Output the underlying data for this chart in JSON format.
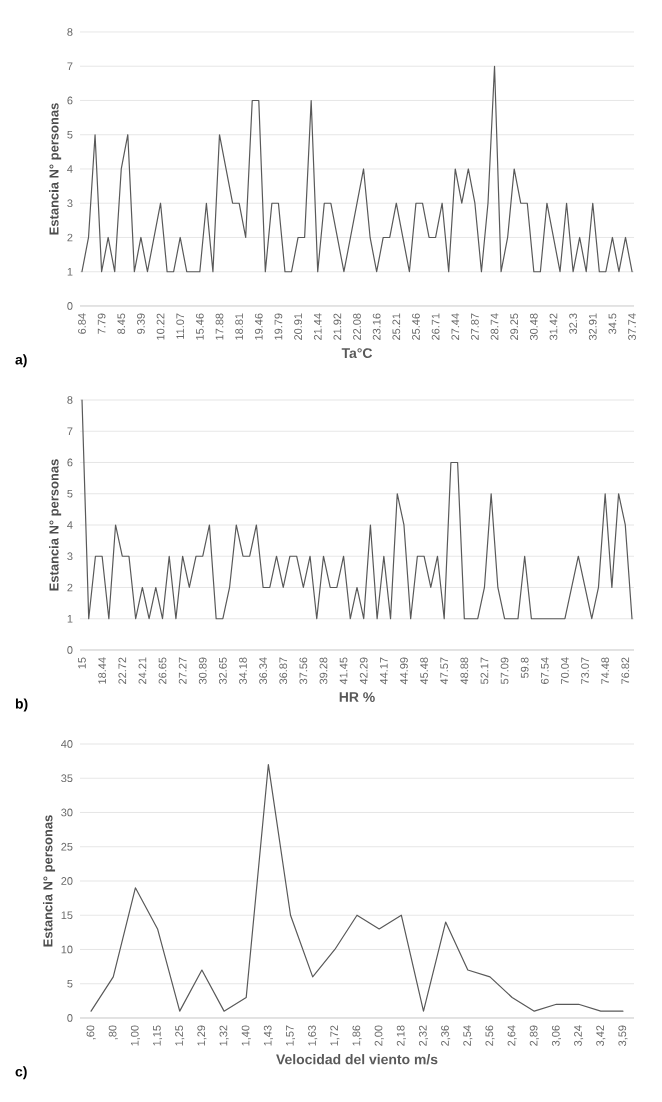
{
  "chart_data": [
    {
      "type": "line",
      "xlabel": "Ta°C",
      "ylabel": "Estancia N° personas",
      "annotations": [
        "a)"
      ],
      "categories": [
        "6.84",
        null,
        null,
        "7.79",
        null,
        null,
        "8.45",
        null,
        null,
        "9.39",
        null,
        null,
        "10.22",
        null,
        null,
        "11.07",
        null,
        null,
        "15.46",
        null,
        null,
        "17.88",
        null,
        null,
        "18.81",
        null,
        null,
        "19.46",
        null,
        null,
        "19.79",
        null,
        null,
        "20.91",
        null,
        null,
        "21.44",
        null,
        null,
        "21.92",
        null,
        null,
        "22.08",
        null,
        null,
        "23.16",
        null,
        null,
        "25.21",
        null,
        null,
        "25.46",
        null,
        null,
        "26.71",
        null,
        null,
        "27.44",
        null,
        null,
        "27.87",
        null,
        null,
        "28.74",
        null,
        null,
        "29.25",
        null,
        null,
        "30.48",
        null,
        null,
        "31.42",
        null,
        null,
        "32.3",
        null,
        null,
        "32.91",
        null,
        null,
        "34.5",
        null,
        null,
        "37.74"
      ],
      "series": [
        {
          "color": "#595959",
          "values": [
            1,
            2,
            5,
            1,
            2,
            1,
            4,
            5,
            1,
            2,
            1,
            2,
            3,
            1,
            1,
            2,
            1,
            1,
            1,
            3,
            1,
            5,
            4,
            3,
            3,
            2,
            6,
            6,
            1,
            3,
            3,
            1,
            1,
            2,
            2,
            6,
            1,
            3,
            3,
            2,
            1,
            2,
            3,
            4,
            2,
            1,
            2,
            2,
            3,
            2,
            1,
            3,
            3,
            2,
            2,
            3,
            1,
            4,
            3,
            4,
            3,
            1,
            3,
            7,
            1,
            2,
            4,
            3,
            3,
            1,
            1,
            3,
            2,
            1,
            3,
            1,
            2,
            1,
            3,
            1,
            1,
            2,
            1,
            2,
            1
          ]
        }
      ],
      "ylim": [
        0,
        8
      ],
      "yticks": [
        0,
        1,
        2,
        3,
        4,
        5,
        6,
        7,
        8
      ],
      "grid": "y"
    },
    {
      "type": "line",
      "xlabel": "HR %",
      "ylabel": "Estancia N° personas",
      "annotations": [
        "b)"
      ],
      "categories": [
        "15",
        null,
        null,
        "18.44",
        null,
        null,
        "22.72",
        null,
        null,
        "24.21",
        null,
        null,
        "26.65",
        null,
        null,
        "27.27",
        null,
        null,
        "30.89",
        null,
        null,
        "32.65",
        null,
        null,
        "34.18",
        null,
        null,
        "36.34",
        null,
        null,
        "36.87",
        null,
        null,
        "37.56",
        null,
        null,
        "39.28",
        null,
        null,
        "41.45",
        null,
        null,
        "42.29",
        null,
        null,
        "44.17",
        null,
        null,
        "44.99",
        null,
        null,
        "45.48",
        null,
        null,
        "47.57",
        null,
        null,
        "48.88",
        null,
        null,
        "52.17",
        null,
        null,
        "57.09",
        null,
        null,
        "59.8",
        null,
        null,
        "67.54",
        null,
        null,
        "70.04",
        null,
        null,
        "73.07",
        null,
        null,
        "74.48",
        null,
        null,
        "76.82",
        null
      ],
      "series": [
        {
          "color": "#595959",
          "values": [
            8,
            1,
            3,
            3,
            1,
            4,
            3,
            3,
            1,
            2,
            1,
            2,
            1,
            3,
            1,
            3,
            2,
            3,
            3,
            4,
            1,
            1,
            2,
            4,
            3,
            3,
            4,
            2,
            2,
            3,
            2,
            3,
            3,
            2,
            3,
            1,
            3,
            2,
            2,
            3,
            1,
            2,
            1,
            4,
            1,
            3,
            1,
            5,
            4,
            1,
            3,
            3,
            2,
            3,
            1,
            6,
            6,
            1,
            1,
            1,
            2,
            5,
            2,
            1,
            1,
            1,
            3,
            1,
            1,
            1,
            1,
            1,
            1,
            2,
            3,
            2,
            1,
            2,
            5,
            2,
            5,
            4,
            1
          ]
        }
      ],
      "ylim": [
        0,
        8
      ],
      "yticks": [
        0,
        1,
        2,
        3,
        4,
        5,
        6,
        7,
        8
      ],
      "grid": "y"
    },
    {
      "type": "line",
      "xlabel": "Velocidad del viento m/s",
      "ylabel": "Estancia N° personas",
      "annotations": [
        "c)"
      ],
      "categories": [
        ",60",
        ",80",
        "1,00",
        "1,15",
        "1,25",
        "1,29",
        "1,32",
        "1,40",
        "1,43",
        "1,57",
        "1,63",
        "1,72",
        "1,86",
        "2,00",
        "2,18",
        "2,32",
        "2,36",
        "2,54",
        "2,56",
        "2,64",
        "2,89",
        "3,06",
        "3,24",
        "3,42",
        "3,59"
      ],
      "series": [
        {
          "color": "#595959",
          "values": [
            1,
            6,
            19,
            13,
            1,
            7,
            1,
            3,
            37,
            15,
            6,
            10,
            15,
            13,
            15,
            1,
            14,
            7,
            6,
            3,
            1,
            2,
            2,
            1,
            1
          ]
        }
      ],
      "ylim": [
        0,
        40
      ],
      "yticks": [
        0,
        5,
        10,
        15,
        20,
        25,
        30,
        35,
        40
      ],
      "grid": "y"
    }
  ]
}
